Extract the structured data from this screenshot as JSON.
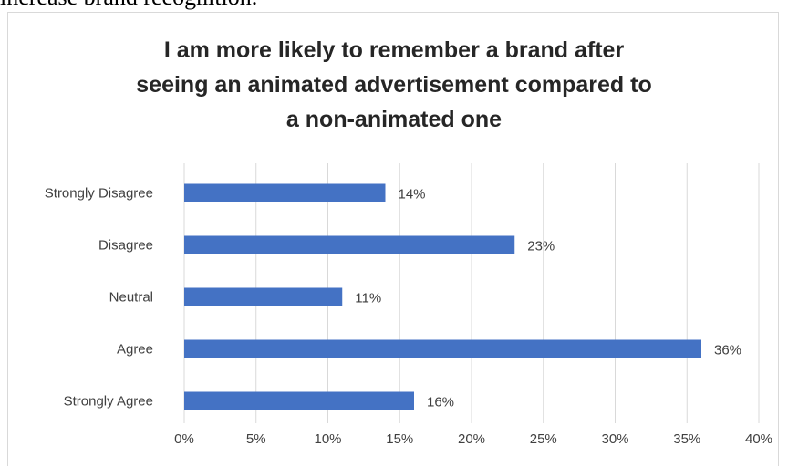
{
  "page": {
    "caption": "increase brand recognition."
  },
  "chart_data": {
    "type": "bar",
    "orientation": "horizontal",
    "title_lines": [
      "I am more likely to remember a brand after",
      "seeing an animated advertisement compared to",
      "a non-animated one"
    ],
    "categories": [
      "Strongly Disagree",
      "Disagree",
      "Neutral",
      "Agree",
      "Strongly Agree"
    ],
    "values": [
      14,
      23,
      11,
      36,
      16
    ],
    "data_labels": [
      "14%",
      "23%",
      "11%",
      "36%",
      "16%"
    ],
    "xlim": [
      0,
      40
    ],
    "xticks": [
      0,
      5,
      10,
      15,
      20,
      25,
      30,
      35,
      40
    ],
    "xtick_labels": [
      "0%",
      "5%",
      "10%",
      "15%",
      "20%",
      "25%",
      "30%",
      "35%",
      "40%"
    ],
    "bar_color": "#4472c4",
    "gridlines": "vertical",
    "legend": "none"
  }
}
